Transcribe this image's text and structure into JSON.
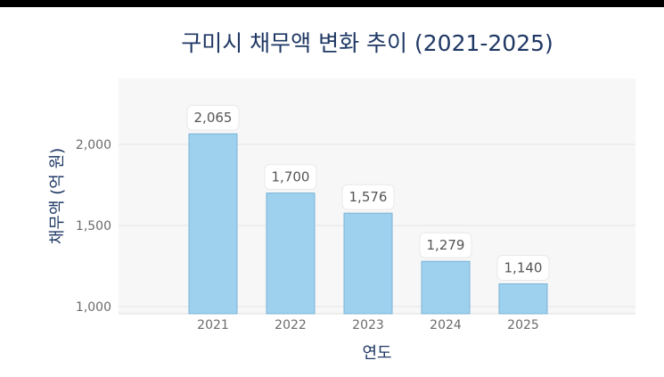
{
  "chart_data": {
    "type": "bar",
    "title": "구미시 채무액 변화 추이 (2021-2025)",
    "xlabel": "연도",
    "ylabel": "채무액 (억 원)",
    "categories": [
      "2021",
      "2022",
      "2023",
      "2024",
      "2025"
    ],
    "values": [
      2065,
      1700,
      1576,
      1279,
      1140
    ],
    "data_labels": [
      "2,065",
      "1,700",
      "1,576",
      "1,279",
      "1,140"
    ],
    "yticks": [
      1000,
      1500,
      2000
    ],
    "ytick_labels": [
      "1,000",
      "1,500",
      "2,000"
    ],
    "ylim": [
      1000,
      2380
    ],
    "grid": true,
    "bar_color": "#9dd1ee",
    "plot_background": "#f7f7f7"
  }
}
